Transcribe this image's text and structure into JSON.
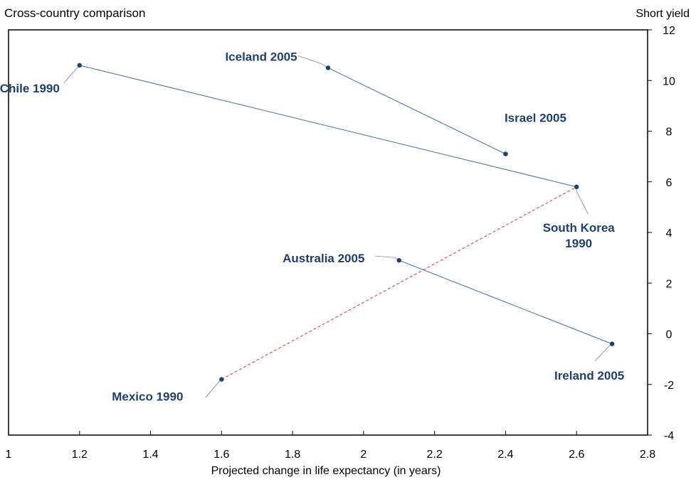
{
  "chart_data": {
    "type": "scatter",
    "title": "Cross-country comparison",
    "xlabel": "Projected change in life expectancy (in years)",
    "ylabel": "Short yield",
    "xlim": [
      1,
      2.8
    ],
    "ylim": [
      -4,
      12
    ],
    "x_ticks": [
      1,
      1.2,
      1.4,
      1.6,
      1.8,
      2,
      2.2,
      2.4,
      2.6,
      2.8
    ],
    "y_ticks": [
      -4,
      -2,
      0,
      2,
      4,
      6,
      8,
      10,
      12
    ],
    "x_tick_labels": [
      "1",
      "1.2",
      "1.4",
      "1.6",
      "1.8",
      "2",
      "2.2",
      "2.4",
      "2.6",
      "2.8"
    ],
    "y_tick_labels": [
      "-4",
      "-2",
      "0",
      "2",
      "4",
      "6",
      "8",
      "10",
      "12"
    ],
    "grid": false,
    "points": [
      {
        "label": "Chile 1990",
        "x": 1.2,
        "y": 10.6
      },
      {
        "label": "Iceland 2005",
        "x": 1.9,
        "y": 10.5
      },
      {
        "label": "Israel 2005",
        "x": 2.4,
        "y": 7.1
      },
      {
        "label": "South Korea 1990",
        "x": 2.6,
        "y": 5.8
      },
      {
        "label": "Australia 2005",
        "x": 2.1,
        "y": 2.9
      },
      {
        "label": "Ireland 2005",
        "x": 2.7,
        "y": -0.4
      },
      {
        "label": "Mexico 1990",
        "x": 1.6,
        "y": -1.8
      }
    ],
    "connections": [
      {
        "from": "Chile 1990",
        "to": "South Korea 1990",
        "style": "solid",
        "color": "#3b6ea8"
      },
      {
        "from": "Iceland 2005",
        "to": "Israel 2005",
        "style": "solid",
        "color": "#3b6ea8"
      },
      {
        "from": "Australia 2005",
        "to": "Ireland 2005",
        "style": "solid",
        "color": "#3b6ea8"
      },
      {
        "from": "Mexico 1990",
        "to": "South Korea 1990",
        "style": "dashed",
        "color": "#e8322c"
      }
    ],
    "colors": {
      "point": "#1f3f6e",
      "label": "#1f3f6e",
      "leader": "#999999",
      "axis": "#000000"
    }
  }
}
